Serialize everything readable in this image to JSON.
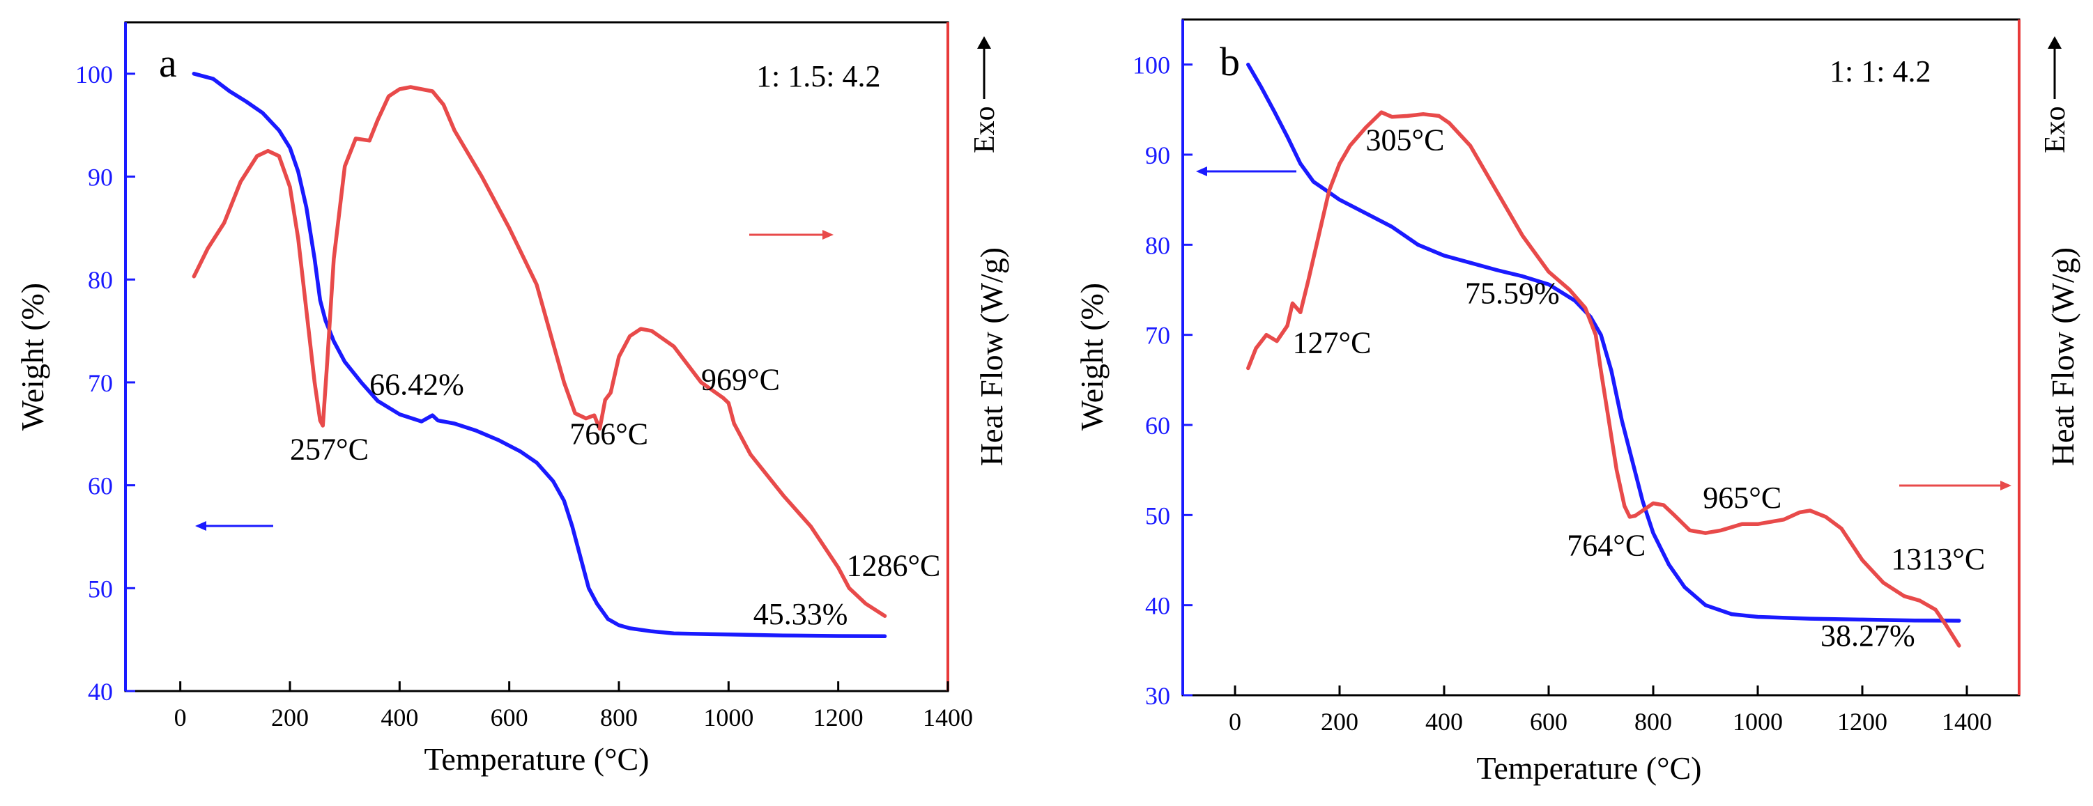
{
  "chart_data": [
    {
      "type": "line",
      "panel_label": "a",
      "ratio_label": "1: 1.5: 4.2",
      "xlabel": "Temperature (°C)",
      "ylabel_left": "Weight (%)",
      "ylabel_right": "Heat Flow (W/g)",
      "exo_label": "Exo",
      "xlim": [
        -100,
        1400
      ],
      "xticks": [
        0,
        200,
        400,
        600,
        800,
        1000,
        1200,
        1400
      ],
      "ylim": [
        40,
        105
      ],
      "yticks": [
        40,
        50,
        60,
        70,
        80,
        90,
        100
      ],
      "heatflow_range": [
        40,
        105
      ],
      "grid": false,
      "left_axis_color": "#1a1aff",
      "right_axis_color": "#e83a3a",
      "series": [
        {
          "role": "weight",
          "color": "#1a1aff",
          "x": [
            25,
            60,
            90,
            120,
            150,
            180,
            200,
            215,
            230,
            245,
            255,
            265,
            280,
            300,
            330,
            360,
            400,
            440,
            460,
            470,
            500,
            540,
            580,
            620,
            650,
            680,
            700,
            715,
            730,
            745,
            760,
            780,
            800,
            820,
            860,
            900,
            1000,
            1100,
            1200,
            1285
          ],
          "y": [
            100.0,
            99.5,
            98.3,
            97.3,
            96.2,
            94.5,
            92.8,
            90.5,
            87.0,
            82.0,
            78.0,
            76.0,
            74.0,
            72.0,
            70.0,
            68.2,
            66.9,
            66.2,
            66.8,
            66.3,
            66.0,
            65.3,
            64.4,
            63.3,
            62.2,
            60.4,
            58.5,
            56.0,
            53.0,
            50.0,
            48.5,
            47.0,
            46.4,
            46.1,
            45.8,
            45.6,
            45.5,
            45.4,
            45.35,
            45.33
          ]
        },
        {
          "role": "heat_flow",
          "color": "#e84a4a",
          "x": [
            25,
            50,
            80,
            110,
            140,
            160,
            180,
            200,
            215,
            230,
            245,
            255,
            260,
            268,
            280,
            300,
            320,
            345,
            360,
            380,
            400,
            420,
            440,
            460,
            480,
            500,
            550,
            600,
            650,
            700,
            720,
            740,
            755,
            765,
            775,
            785,
            800,
            820,
            840,
            860,
            900,
            950,
            990,
            1000,
            1010,
            1040,
            1100,
            1150,
            1200,
            1220,
            1250,
            1285
          ],
          "y": [
            80.3,
            83.0,
            85.5,
            89.5,
            92.0,
            92.5,
            92.0,
            89.0,
            84.0,
            77.0,
            70.0,
            66.3,
            65.8,
            72.0,
            82.0,
            91.0,
            93.7,
            93.5,
            95.5,
            97.8,
            98.5,
            98.7,
            98.5,
            98.3,
            97.0,
            94.5,
            90.0,
            85.0,
            79.5,
            70.0,
            67.0,
            66.5,
            66.8,
            65.5,
            68.3,
            69.0,
            72.5,
            74.5,
            75.2,
            75.0,
            73.5,
            70.0,
            68.5,
            68.0,
            66.0,
            63.0,
            59.0,
            56.0,
            52.0,
            50.0,
            48.5,
            47.3
          ]
        }
      ],
      "annotations": [
        {
          "text": "257°C",
          "x": 200,
          "y": 62.5
        },
        {
          "text": "66.42%",
          "x": 345,
          "y": 68.8
        },
        {
          "text": "766°C",
          "x": 710,
          "y": 64.0
        },
        {
          "text": "969°C",
          "x": 950,
          "y": 69.3
        },
        {
          "text": "1286°C",
          "x": 1215,
          "y": 51.2
        },
        {
          "text": "45.33%",
          "x": 1045,
          "y": 46.5
        }
      ]
    },
    {
      "type": "line",
      "panel_label": "b",
      "ratio_label": "1: 1: 4.2",
      "xlabel": "Temperature (°C)",
      "ylabel_left": "Weight (%)",
      "ylabel_right": "Heat Flow (W/g)",
      "exo_label": "Exo",
      "xlim": [
        -100,
        1500
      ],
      "xticks": [
        0,
        200,
        400,
        600,
        800,
        1000,
        1200,
        1400
      ],
      "ylim": [
        30,
        105
      ],
      "yticks": [
        30,
        40,
        50,
        60,
        70,
        80,
        90,
        100
      ],
      "heatflow_range": [
        30,
        105
      ],
      "grid": false,
      "left_axis_color": "#1a1aff",
      "right_axis_color": "#e83a3a",
      "series": [
        {
          "role": "weight",
          "color": "#1a1aff",
          "x": [
            25,
            50,
            75,
            100,
            125,
            150,
            175,
            200,
            250,
            300,
            350,
            400,
            450,
            500,
            550,
            600,
            650,
            680,
            700,
            720,
            740,
            760,
            780,
            800,
            830,
            860,
            900,
            950,
            1000,
            1100,
            1200,
            1300,
            1385
          ],
          "y": [
            100.0,
            97.5,
            94.8,
            92.0,
            89.0,
            87.0,
            86.0,
            85.0,
            83.5,
            82.0,
            80.0,
            78.8,
            78.0,
            77.2,
            76.5,
            75.6,
            73.8,
            72.0,
            70.0,
            66.0,
            60.5,
            56.0,
            51.5,
            48.0,
            44.5,
            42.0,
            40.0,
            39.0,
            38.7,
            38.5,
            38.4,
            38.3,
            38.27
          ]
        },
        {
          "role": "heat_flow",
          "color": "#e84a4a",
          "x": [
            25,
            40,
            60,
            80,
            100,
            110,
            125,
            140,
            160,
            180,
            200,
            220,
            250,
            280,
            300,
            330,
            360,
            390,
            410,
            450,
            500,
            550,
            600,
            640,
            670,
            690,
            700,
            715,
            730,
            745,
            755,
            765,
            780,
            800,
            820,
            840,
            870,
            900,
            930,
            970,
            1000,
            1050,
            1080,
            1100,
            1130,
            1160,
            1200,
            1240,
            1280,
            1310,
            1340,
            1360,
            1385
          ],
          "y": [
            66.3,
            68.5,
            70.0,
            69.3,
            71.0,
            73.5,
            72.5,
            76.0,
            81.0,
            86.0,
            89.0,
            91.0,
            93.0,
            94.7,
            94.2,
            94.3,
            94.5,
            94.3,
            93.5,
            91.0,
            86.0,
            81.0,
            77.0,
            75.0,
            73.0,
            70.0,
            66.0,
            60.5,
            55.0,
            51.0,
            49.8,
            49.9,
            50.5,
            51.3,
            51.1,
            50.0,
            48.3,
            48.0,
            48.3,
            49.0,
            49.0,
            49.5,
            50.3,
            50.5,
            49.8,
            48.5,
            45.0,
            42.5,
            41.0,
            40.5,
            39.5,
            37.8,
            35.5
          ]
        }
      ],
      "annotations": [
        {
          "text": "305°C",
          "x": 250,
          "y": 90.5
        },
        {
          "text": "127°C",
          "x": 110,
          "y": 68.0
        },
        {
          "text": "75.59%",
          "x": 440,
          "y": 73.5
        },
        {
          "text": "764°C",
          "x": 635,
          "y": 45.5
        },
        {
          "text": "965°C",
          "x": 895,
          "y": 50.8
        },
        {
          "text": "1313°C",
          "x": 1255,
          "y": 44.0
        },
        {
          "text": "38.27%",
          "x": 1120,
          "y": 35.5
        }
      ]
    }
  ]
}
